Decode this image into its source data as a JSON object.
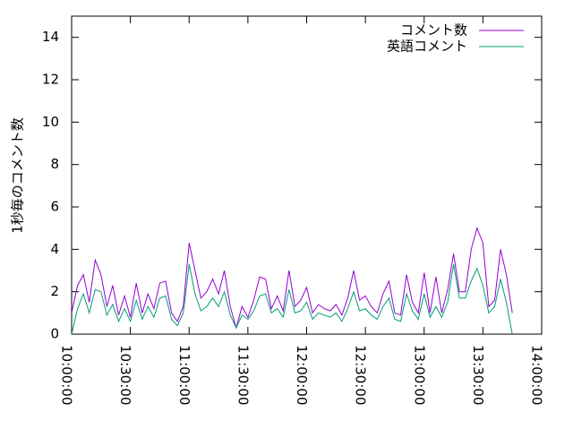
{
  "chart_data": {
    "type": "line",
    "ylabel": "1秒毎のコメント数",
    "x": [
      "10:00:00",
      "10:03:00",
      "10:06:00",
      "10:09:00",
      "10:12:00",
      "10:15:00",
      "10:18:00",
      "10:21:00",
      "10:24:00",
      "10:27:00",
      "10:30:00",
      "10:33:00",
      "10:36:00",
      "10:39:00",
      "10:42:00",
      "10:45:00",
      "10:48:00",
      "10:51:00",
      "10:54:00",
      "10:57:00",
      "11:00:00",
      "11:03:00",
      "11:06:00",
      "11:09:00",
      "11:12:00",
      "11:15:00",
      "11:18:00",
      "11:21:00",
      "11:24:00",
      "11:27:00",
      "11:30:00",
      "11:33:00",
      "11:36:00",
      "11:39:00",
      "11:42:00",
      "11:45:00",
      "11:48:00",
      "11:51:00",
      "11:54:00",
      "11:57:00",
      "12:00:00",
      "12:03:00",
      "12:06:00",
      "12:09:00",
      "12:12:00",
      "12:15:00",
      "12:18:00",
      "12:21:00",
      "12:24:00",
      "12:27:00",
      "12:30:00",
      "12:33:00",
      "12:36:00",
      "12:39:00",
      "12:42:00",
      "12:45:00",
      "12:48:00",
      "12:51:00",
      "12:54:00",
      "12:57:00",
      "13:00:00",
      "13:03:00",
      "13:06:00",
      "13:09:00",
      "13:12:00",
      "13:15:00",
      "13:18:00",
      "13:21:00",
      "13:24:00",
      "13:27:00",
      "13:30:00",
      "13:33:00",
      "13:36:00",
      "13:39:00",
      "13:42:00",
      "13:45:00"
    ],
    "series": [
      {
        "name": "コメント数",
        "color": "#9400d3",
        "values": [
          1.0,
          2.3,
          2.8,
          1.5,
          3.5,
          2.8,
          1.3,
          2.3,
          0.9,
          1.8,
          0.8,
          2.4,
          1.0,
          1.9,
          1.2,
          2.4,
          2.5,
          1.0,
          0.6,
          1.3,
          4.3,
          3.0,
          1.7,
          2.0,
          2.6,
          1.9,
          3.0,
          1.3,
          0.3,
          1.3,
          0.8,
          1.6,
          2.7,
          2.6,
          1.2,
          1.8,
          1.1,
          3.0,
          1.3,
          1.6,
          2.2,
          1.0,
          1.4,
          1.2,
          1.1,
          1.4,
          0.9,
          1.7,
          3.0,
          1.6,
          1.8,
          1.3,
          1.0,
          1.9,
          2.5,
          1.0,
          0.9,
          2.8,
          1.5,
          1.0,
          2.9,
          1.0,
          2.7,
          1.0,
          2.1,
          3.8,
          2.0,
          2.0,
          4.0,
          5.0,
          4.3,
          1.3,
          1.6,
          4.0,
          2.8,
          1.0
        ]
      },
      {
        "name": "英語コメント",
        "color": "#009e73",
        "values": [
          0,
          1.2,
          1.9,
          1.0,
          2.1,
          2.0,
          0.9,
          1.4,
          0.6,
          1.2,
          0.6,
          1.6,
          0.7,
          1.3,
          0.8,
          1.7,
          1.8,
          0.7,
          0.4,
          1.0,
          3.3,
          1.9,
          1.1,
          1.3,
          1.7,
          1.3,
          2.0,
          0.9,
          0.3,
          0.9,
          0.7,
          1.1,
          1.8,
          1.9,
          1.0,
          1.2,
          0.8,
          2.1,
          1.0,
          1.1,
          1.5,
          0.7,
          1.0,
          0.9,
          0.8,
          1.0,
          0.6,
          1.2,
          2.0,
          1.1,
          1.2,
          0.9,
          0.7,
          1.3,
          1.7,
          0.7,
          0.6,
          1.9,
          1.1,
          0.7,
          1.9,
          0.8,
          1.3,
          0.8,
          1.5,
          3.3,
          1.7,
          1.7,
          2.5,
          3.1,
          2.3,
          1.0,
          1.3,
          2.6,
          1.5,
          0.0
        ]
      }
    ],
    "xlim": [
      "10:00:00",
      "14:00:00"
    ],
    "xticks": [
      "10:00:00",
      "10:30:00",
      "11:00:00",
      "11:30:00",
      "12:00:00",
      "12:30:00",
      "13:00:00",
      "13:30:00",
      "14:00:00"
    ],
    "ylim": [
      0,
      15
    ],
    "yticks": [
      0,
      2,
      4,
      6,
      8,
      10,
      12,
      14
    ],
    "legend": "top-right"
  }
}
